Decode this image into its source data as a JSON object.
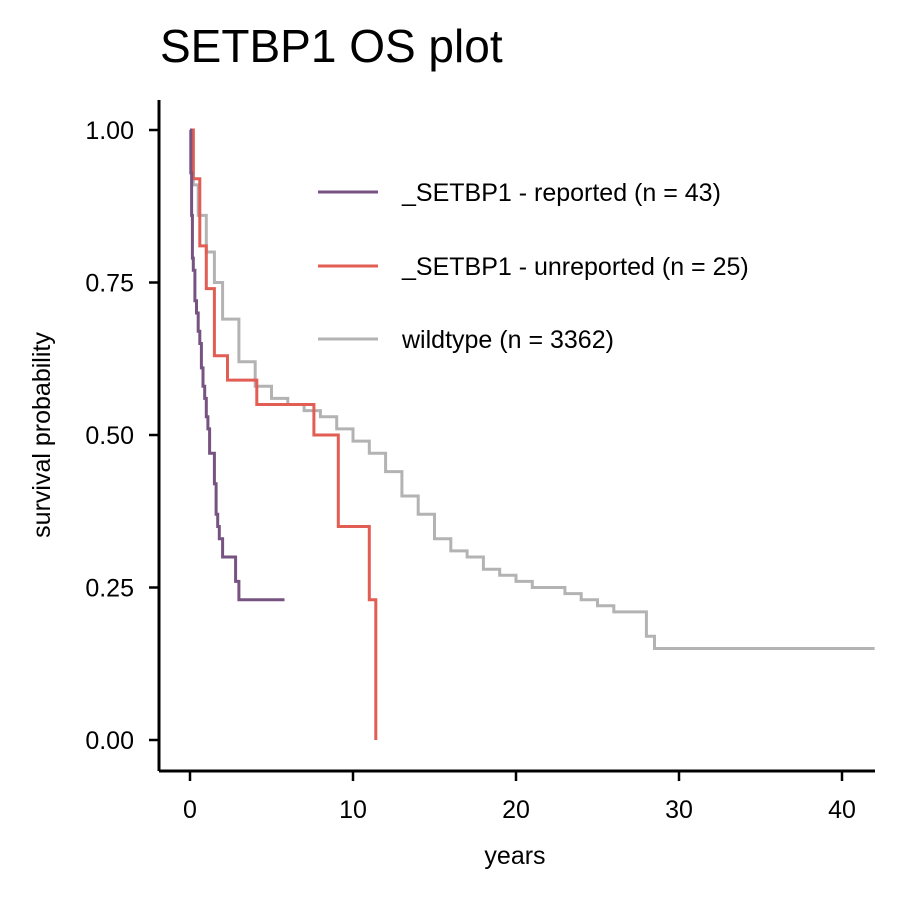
{
  "chart_data": {
    "type": "line",
    "title": "SETBP1 OS plot",
    "xlabel": "years",
    "ylabel": "survival probability",
    "xlim": [
      -2,
      42
    ],
    "ylim": [
      -0.05,
      1.05
    ],
    "x_ticks": [
      0,
      10,
      20,
      30,
      40
    ],
    "y_ticks": [
      0.0,
      0.25,
      0.5,
      0.75,
      1.0
    ],
    "x_tick_labels": [
      "0",
      "10",
      "20",
      "30",
      "40"
    ],
    "y_tick_labels": [
      "0.00",
      "0.25",
      "0.50",
      "0.75",
      "1.00"
    ],
    "grid": false,
    "legend_position": "top-right",
    "series": [
      {
        "name": "_SETBP1 - reported (n = 43)",
        "color": "#765380",
        "x": [
          0,
          0.05,
          0.1,
          0.15,
          0.2,
          0.3,
          0.4,
          0.5,
          0.6,
          0.7,
          0.8,
          0.9,
          1.0,
          1.1,
          1.2,
          1.5,
          1.6,
          1.7,
          1.8,
          2.0,
          2.8,
          3.0,
          5.8
        ],
        "y": [
          1.0,
          0.93,
          0.86,
          0.79,
          0.77,
          0.72,
          0.7,
          0.67,
          0.65,
          0.61,
          0.58,
          0.56,
          0.53,
          0.51,
          0.47,
          0.42,
          0.37,
          0.35,
          0.33,
          0.3,
          0.26,
          0.23,
          0.23
        ]
      },
      {
        "name": "_SETBP1 - unreported (n = 25)",
        "color": "#E25D53",
        "x": [
          0,
          0.2,
          0.6,
          1.0,
          1.5,
          2.3,
          4.1,
          7.6,
          9.1,
          11.0,
          11.4
        ],
        "y": [
          1.0,
          0.92,
          0.81,
          0.74,
          0.63,
          0.59,
          0.55,
          0.5,
          0.35,
          0.23,
          0.0
        ]
      },
      {
        "name": "wildtype (n = 3362)",
        "color": "#B3B3B3",
        "x": [
          0,
          0.2,
          0.5,
          1.0,
          1.5,
          2.0,
          3.0,
          4.0,
          5.0,
          6.0,
          7.0,
          8.0,
          9.0,
          10.0,
          11.0,
          12.0,
          13.0,
          14.0,
          15.0,
          16.0,
          17.0,
          18.0,
          19.0,
          20.0,
          21.0,
          22.0,
          23.0,
          24.0,
          25.0,
          26.0,
          27.0,
          28.0,
          28.5,
          30.0,
          35.0,
          42.0
        ],
        "y": [
          1.0,
          0.91,
          0.86,
          0.8,
          0.75,
          0.69,
          0.62,
          0.58,
          0.56,
          0.55,
          0.54,
          0.53,
          0.51,
          0.49,
          0.47,
          0.44,
          0.4,
          0.37,
          0.33,
          0.31,
          0.3,
          0.28,
          0.27,
          0.26,
          0.25,
          0.25,
          0.24,
          0.23,
          0.22,
          0.21,
          0.21,
          0.17,
          0.15,
          0.15,
          0.15,
          0.15
        ]
      }
    ]
  }
}
